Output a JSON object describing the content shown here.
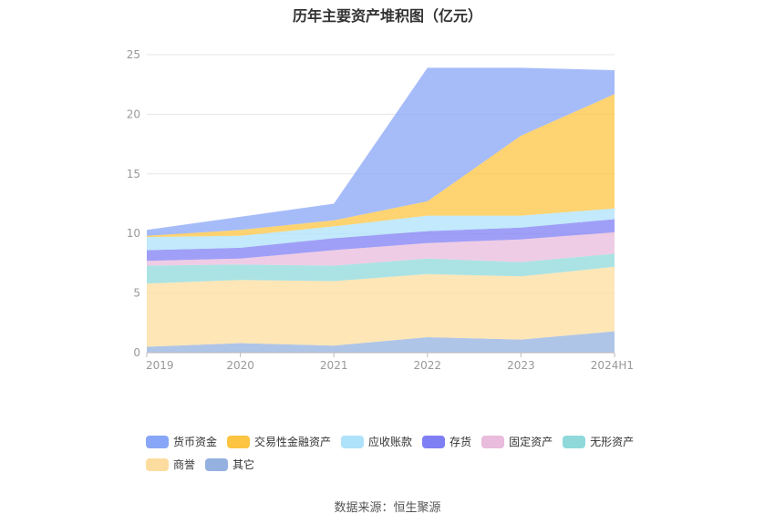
{
  "chart_data": {
    "type": "area",
    "stacked": true,
    "title": "历年主要资产堆积图（亿元）",
    "categories": [
      "2019",
      "2020",
      "2021",
      "2022",
      "2023",
      "2024H1"
    ],
    "ylim": [
      0,
      25
    ],
    "yticks": [
      "0",
      "5",
      "10",
      "15",
      "20",
      "25"
    ],
    "grid": true,
    "legend_position": "bottom",
    "series": [
      {
        "name": "其它",
        "color": "#94b1df",
        "values": [
          0.5,
          0.8,
          0.6,
          1.3,
          1.1,
          1.8
        ]
      },
      {
        "name": "商誉",
        "color": "#fddd9f",
        "values": [
          5.3,
          5.3,
          5.4,
          5.3,
          5.3,
          5.4
        ]
      },
      {
        "name": "无形资产",
        "color": "#8fd9db",
        "values": [
          1.5,
          1.3,
          1.3,
          1.3,
          1.2,
          1.1
        ]
      },
      {
        "name": "固定资产",
        "color": "#e9bbdc",
        "values": [
          0.4,
          0.5,
          1.3,
          1.3,
          1.9,
          1.8
        ]
      },
      {
        "name": "存货",
        "color": "#7f7ff4",
        "values": [
          0.9,
          0.9,
          1.0,
          1.0,
          1.0,
          1.1
        ]
      },
      {
        "name": "应收账款",
        "color": "#aee2fb",
        "values": [
          1.1,
          1.0,
          1.0,
          1.3,
          1.0,
          0.9
        ]
      },
      {
        "name": "交易性金融资产",
        "color": "#fdc442",
        "values": [
          0.1,
          0.5,
          0.5,
          1.2,
          6.7,
          9.6
        ]
      },
      {
        "name": "货币资金",
        "color": "#88a6f7",
        "values": [
          0.5,
          1.1,
          1.4,
          11.2,
          5.7,
          2.0
        ]
      }
    ],
    "legend_order": [
      "货币资金",
      "交易性金融资产",
      "应收账款",
      "存货",
      "固定资产",
      "无形资产",
      "商誉",
      "其它"
    ]
  },
  "source": "数据来源：恒生聚源"
}
